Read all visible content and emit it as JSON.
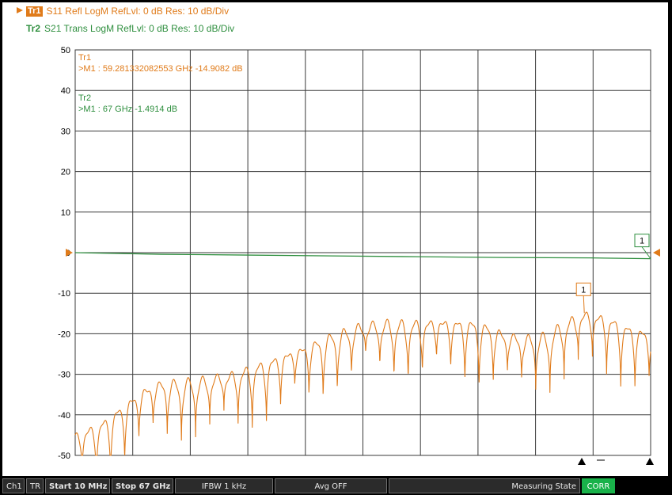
{
  "colors": {
    "trace1": "#e07b1a",
    "trace2": "#2f8f3f",
    "grid": "#3a3a3a",
    "corr": "#19b24a"
  },
  "traces": {
    "tr1": {
      "tag": "Tr1",
      "desc": "S11 Refl LogM RefLvl: 0  dB Res: 10  dB/Div"
    },
    "tr2": {
      "tag": "Tr2",
      "desc": "S21 Trans LogM RefLvl: 0  dB Res: 10  dB/Div"
    }
  },
  "markers": {
    "tr1": {
      "title": "Tr1",
      "readout": ">M1 :  59.281332082553 GHz -14.9082  dB",
      "flag": "1",
      "freq_ghz": 59.28,
      "value_db": -14.9082
    },
    "tr2": {
      "title": "Tr2",
      "readout": ">M1 :  67 GHz -1.4914  dB",
      "flag": "1",
      "freq_ghz": 67,
      "value_db": -1.4914
    }
  },
  "chart_data": {
    "type": "line",
    "xlim": [
      0.01,
      67
    ],
    "ylim": [
      -50,
      50
    ],
    "y_ticks": [
      50,
      40,
      30,
      20,
      10,
      0,
      -10,
      -20,
      -30,
      -40,
      -50
    ],
    "grid": true,
    "series": [
      {
        "name": "Tr1",
        "trace": "S11",
        "envelope_x": [
          0.01,
          3,
          6,
          8,
          10,
          15,
          18,
          22,
          26,
          30,
          33,
          36,
          40,
          43,
          46,
          48,
          50,
          52,
          55,
          57,
          59.3,
          62,
          64,
          67
        ],
        "envelope_y": [
          -45,
          -42,
          -37,
          -34,
          -32,
          -31,
          -30,
          -27,
          -24,
          -20,
          -18,
          -17,
          -17,
          -17,
          -17,
          -18,
          -20,
          -21,
          -20,
          -17,
          -15,
          -16,
          -18,
          -20
        ],
        "ripple_period_ghz": 1.65
      },
      {
        "name": "Tr2",
        "trace": "S21",
        "x": [
          0.01,
          5,
          10,
          20,
          30,
          40,
          50,
          60,
          67
        ],
        "values": [
          0,
          -0.2,
          -0.4,
          -0.6,
          -0.8,
          -1.0,
          -1.2,
          -1.3,
          -1.4914
        ]
      }
    ]
  },
  "statusbar": {
    "channel": "Ch1",
    "mode": "TR",
    "start": "Start 10 MHz",
    "stop": "Stop 67 GHz",
    "ifbw": "IFBW 1 kHz",
    "avg": "Avg OFF",
    "state": "Measuring State",
    "corr": "CORR"
  }
}
